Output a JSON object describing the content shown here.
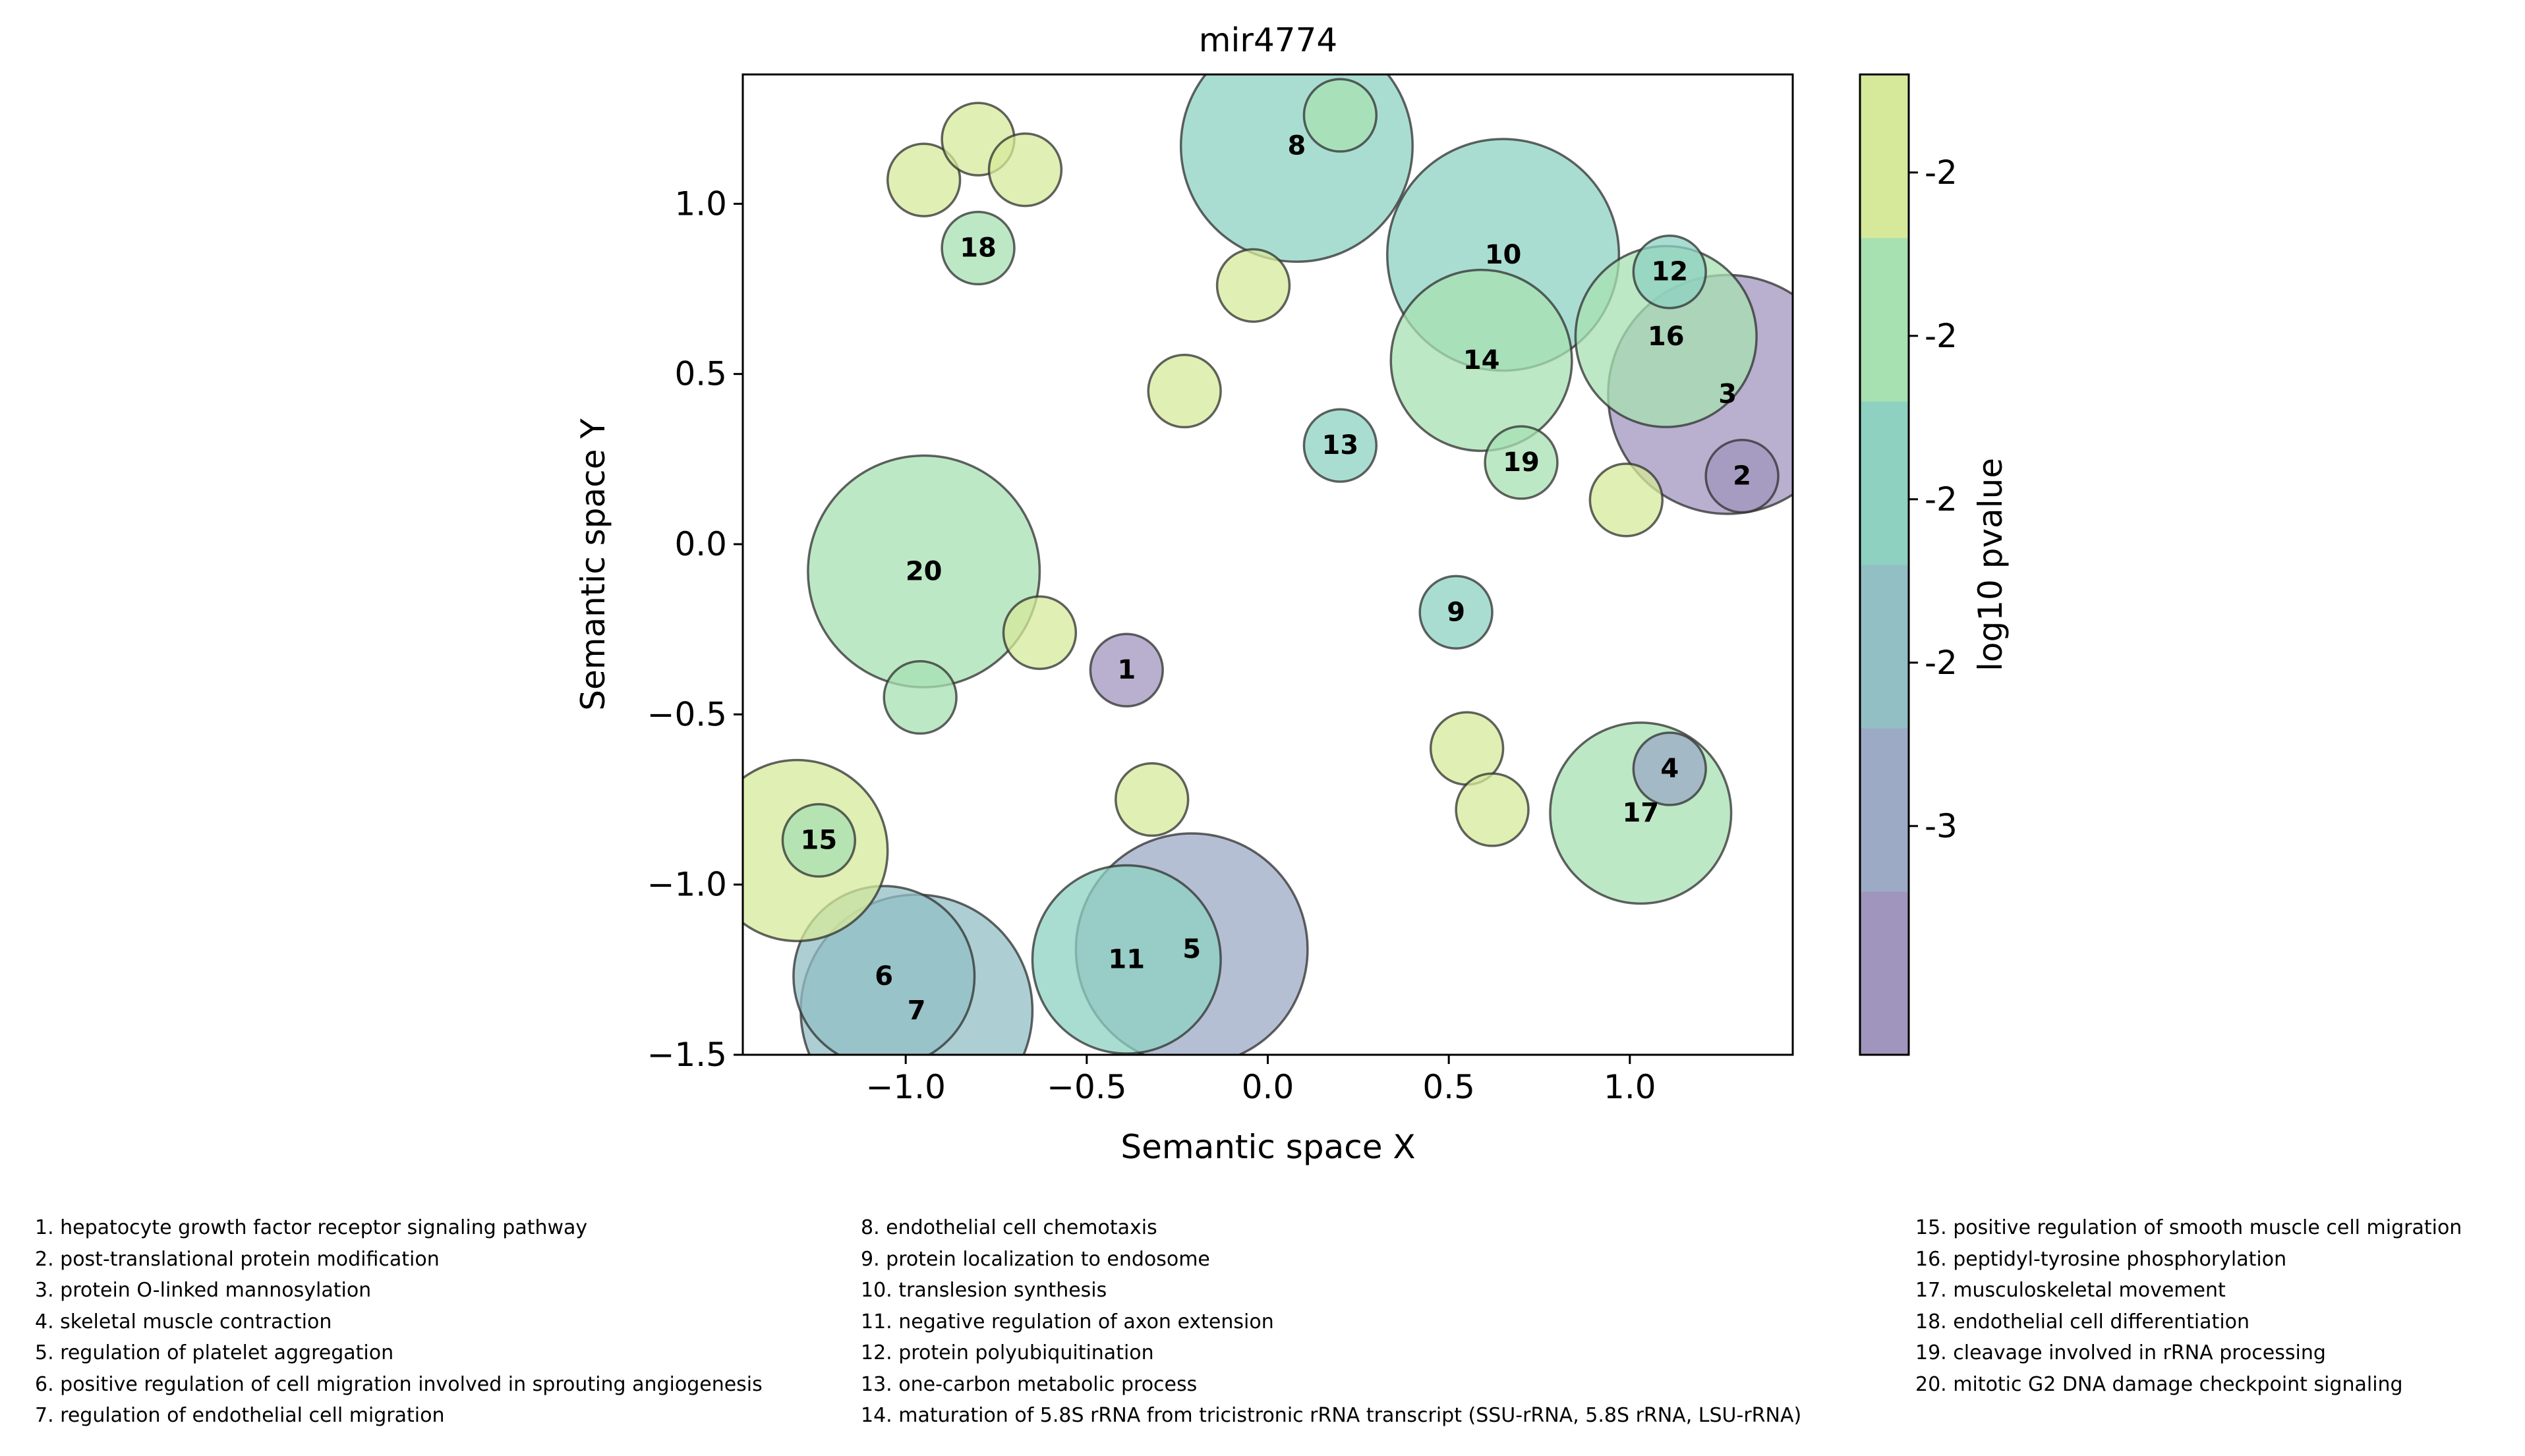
{
  "chart_data": {
    "type": "scatter",
    "title": "mir4774",
    "xlabel": "Semantic space X",
    "ylabel": "Semantic space Y",
    "xlim": [
      -1.45,
      1.45
    ],
    "ylim": [
      -1.5,
      1.38
    ],
    "xticks": [
      -1.0,
      -0.5,
      0.0,
      0.5,
      1.0
    ],
    "xtick_labels": [
      "−1.0",
      "−0.5",
      "0.0",
      "0.5",
      "1.0"
    ],
    "yticks": [
      -1.5,
      -1.0,
      -0.5,
      0.0,
      0.5,
      1.0
    ],
    "ytick_labels": [
      "−1.5",
      "−1.0",
      "−0.5",
      "0.0",
      "0.5",
      "1.0"
    ],
    "grid": false,
    "colorbar": {
      "label": "log10 pvalue",
      "colors": [
        "#a095bd",
        "#9caac6",
        "#91bfc4",
        "#8ed1c1",
        "#a7e0b1",
        "#d6e99a"
      ],
      "tick_labels": [
        "-3",
        "-2",
        "-2",
        "-2",
        "-2"
      ]
    },
    "bubbles": [
      {
        "x": -0.39,
        "y": -0.37,
        "r": 0.1,
        "level": 0,
        "label": "1"
      },
      {
        "x": 1.31,
        "y": 0.2,
        "r": 0.1,
        "level": 0,
        "label": "2"
      },
      {
        "x": 1.27,
        "y": 0.44,
        "r": 0.33,
        "level": 0,
        "label": "3"
      },
      {
        "x": 1.11,
        "y": -0.66,
        "r": 0.1,
        "level": 1,
        "label": "4"
      },
      {
        "x": -0.21,
        "y": -1.19,
        "r": 0.32,
        "level": 1,
        "label": "5"
      },
      {
        "x": -1.06,
        "y": -1.27,
        "r": 0.25,
        "level": 2,
        "label": "6"
      },
      {
        "x": -0.97,
        "y": -1.37,
        "r": 0.32,
        "level": 2,
        "label": "7"
      },
      {
        "x": 0.08,
        "y": 1.17,
        "r": 0.32,
        "level": 3,
        "label": "8"
      },
      {
        "x": 0.52,
        "y": -0.2,
        "r": 0.1,
        "level": 3,
        "label": "9"
      },
      {
        "x": 0.65,
        "y": 0.85,
        "r": 0.32,
        "level": 3,
        "label": "10"
      },
      {
        "x": -0.39,
        "y": -1.22,
        "r": 0.26,
        "level": 3,
        "label": "11"
      },
      {
        "x": 1.11,
        "y": 0.8,
        "r": 0.1,
        "level": 3,
        "label": "12"
      },
      {
        "x": 0.2,
        "y": 0.29,
        "r": 0.1,
        "level": 3,
        "label": "13"
      },
      {
        "x": 0.59,
        "y": 0.54,
        "r": 0.25,
        "level": 4,
        "label": "14"
      },
      {
        "x": -1.24,
        "y": -0.87,
        "r": 0.1,
        "level": 4,
        "label": "15"
      },
      {
        "x": 1.1,
        "y": 0.61,
        "r": 0.25,
        "level": 4,
        "label": "16"
      },
      {
        "x": 1.03,
        "y": -0.79,
        "r": 0.25,
        "level": 4,
        "label": "17"
      },
      {
        "x": -0.8,
        "y": 0.87,
        "r": 0.1,
        "level": 4,
        "label": "18"
      },
      {
        "x": 0.7,
        "y": 0.24,
        "r": 0.1,
        "level": 4,
        "label": "19"
      },
      {
        "x": -0.95,
        "y": -0.08,
        "r": 0.32,
        "level": 4,
        "label": "20"
      },
      {
        "x": 0.2,
        "y": 1.26,
        "r": 0.1,
        "level": 4,
        "label": ""
      },
      {
        "x": -0.96,
        "y": -0.45,
        "r": 0.1,
        "level": 4,
        "label": ""
      },
      {
        "x": -1.3,
        "y": -0.9,
        "r": 0.25,
        "level": 5,
        "label": ""
      },
      {
        "x": -0.95,
        "y": 1.07,
        "r": 0.1,
        "level": 5,
        "label": ""
      },
      {
        "x": -0.8,
        "y": 1.19,
        "r": 0.1,
        "level": 5,
        "label": ""
      },
      {
        "x": -0.67,
        "y": 1.1,
        "r": 0.1,
        "level": 5,
        "label": ""
      },
      {
        "x": -0.04,
        "y": 0.76,
        "r": 0.1,
        "level": 5,
        "label": ""
      },
      {
        "x": -0.23,
        "y": 0.45,
        "r": 0.1,
        "level": 5,
        "label": ""
      },
      {
        "x": 0.99,
        "y": 0.13,
        "r": 0.1,
        "level": 5,
        "label": ""
      },
      {
        "x": -0.63,
        "y": -0.26,
        "r": 0.1,
        "level": 5,
        "label": ""
      },
      {
        "x": -0.32,
        "y": -0.75,
        "r": 0.1,
        "level": 5,
        "label": ""
      },
      {
        "x": 0.55,
        "y": -0.6,
        "r": 0.1,
        "level": 5,
        "label": ""
      },
      {
        "x": 0.62,
        "y": -0.78,
        "r": 0.1,
        "level": 5,
        "label": ""
      }
    ],
    "terms": [
      "1. hepatocyte growth factor receptor signaling pathway",
      "2. post-translational protein modification",
      "3. protein O-linked mannosylation",
      "4. skeletal muscle contraction",
      "5. regulation of platelet aggregation",
      "6. positive regulation of cell migration involved in sprouting angiogenesis",
      "7. regulation of endothelial cell migration",
      "8. endothelial cell chemotaxis",
      "9. protein localization to endosome",
      "10. translesion synthesis",
      "11. negative regulation of axon extension",
      "12. protein polyubiquitination",
      "13. one-carbon metabolic process",
      "14. maturation of 5.8S rRNA from tricistronic rRNA transcript (SSU-rRNA, 5.8S rRNA, LSU-rRNA)",
      "15. positive regulation of smooth muscle cell migration",
      "16. peptidyl-tyrosine phosphorylation",
      "17. musculoskeletal movement",
      "18. endothelial cell differentiation",
      "19. cleavage involved in rRNA processing",
      "20. mitotic G2 DNA damage checkpoint signaling"
    ]
  }
}
